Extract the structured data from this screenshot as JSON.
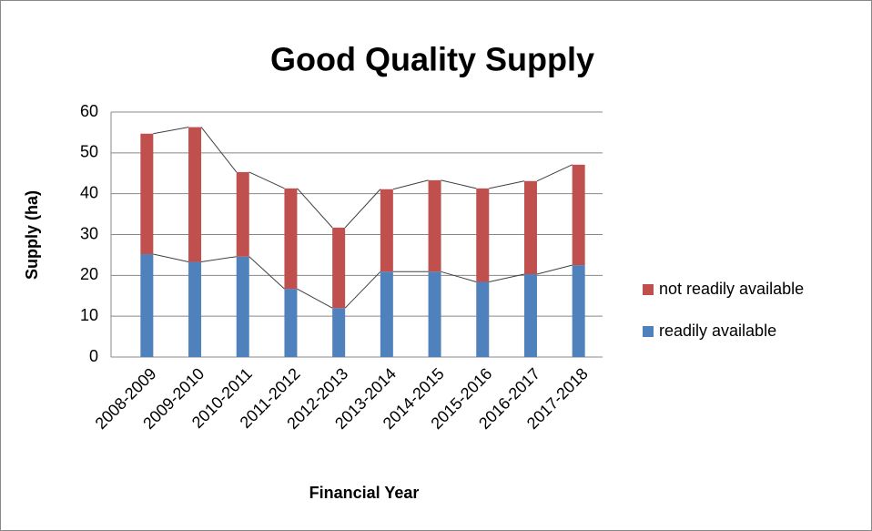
{
  "chart_data": {
    "type": "stacked_bar",
    "title": "Good Quality Supply",
    "x_label": "Financial Year",
    "y_label": "Supply (ha)",
    "categories": [
      "2008-2009",
      "2009-2010",
      "2010-2011",
      "2011-2012",
      "2012-2013",
      "2013-2014",
      "2014-2015",
      "2015-2016",
      "2016-2017",
      "2017-2018"
    ],
    "series": [
      {
        "name": "readily available",
        "color": "#4f81bd",
        "values": [
          25.2,
          23.3,
          24.6,
          16.7,
          12,
          20.9,
          20.9,
          18.4,
          20.3,
          22.5
        ]
      },
      {
        "name": "not readily available",
        "color": "#c0504d",
        "values": [
          29.5,
          33.0,
          20.7,
          24.6,
          19.7,
          20.2,
          22.4,
          22.9,
          22.8,
          24.6
        ]
      }
    ],
    "ylim": [
      0,
      60
    ],
    "yticks": [
      0,
      10,
      20,
      30,
      40,
      50,
      60
    ],
    "grid": true,
    "legend": "right",
    "series_lines": true
  }
}
